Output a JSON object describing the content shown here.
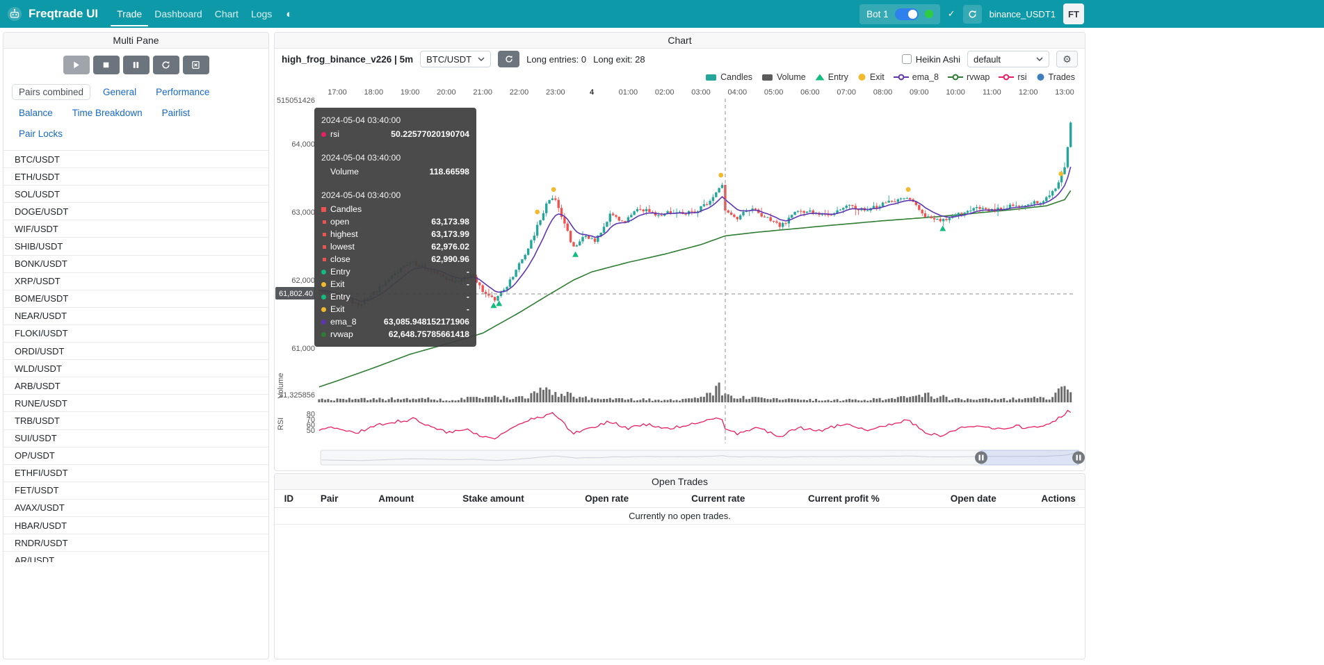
{
  "navbar": {
    "brand": "Freqtrade UI",
    "links": [
      {
        "label": "Trade",
        "active": true
      },
      {
        "label": "Dashboard",
        "active": false
      },
      {
        "label": "Chart",
        "active": false
      },
      {
        "label": "Logs",
        "active": false
      }
    ],
    "icons": {
      "theme": "◐",
      "check": "✓",
      "gear": "⚙"
    },
    "bot_name": "Bot 1",
    "exchange_label": "binance_USDT1",
    "avatar": "FT"
  },
  "multi_pane": {
    "title": "Multi Pane",
    "controls": [
      {
        "name": "start-bot-button",
        "icon": "play",
        "disabled": true
      },
      {
        "name": "stop-bot-button",
        "icon": "stop",
        "disabled": false
      },
      {
        "name": "pause-bot-button",
        "icon": "pause",
        "disabled": false
      },
      {
        "name": "reload-config-button",
        "icon": "reload",
        "disabled": false
      },
      {
        "name": "cancel-open-orders-button",
        "icon": "filex",
        "disabled": false
      }
    ],
    "tabs": [
      {
        "label": "Pairs combined",
        "active": true
      },
      {
        "label": "General",
        "active": false
      },
      {
        "label": "Performance",
        "active": false
      },
      {
        "label": "Balance",
        "active": false
      },
      {
        "label": "Time Breakdown",
        "active": false
      },
      {
        "label": "Pairlist",
        "active": false
      },
      {
        "label": "Pair Locks",
        "active": false
      }
    ],
    "pairs": [
      "BTC/USDT",
      "ETH/USDT",
      "SOL/USDT",
      "DOGE/USDT",
      "WIF/USDT",
      "SHIB/USDT",
      "BONK/USDT",
      "XRP/USDT",
      "BOME/USDT",
      "NEAR/USDT",
      "FLOKI/USDT",
      "ORDI/USDT",
      "WLD/USDT",
      "ARB/USDT",
      "RUNE/USDT",
      "TRB/USDT",
      "SUI/USDT",
      "OP/USDT",
      "ETHFI/USDT",
      "FET/USDT",
      "AVAX/USDT",
      "HBAR/USDT",
      "RNDR/USDT",
      "AR/USDT"
    ]
  },
  "chart": {
    "panel_title": "Chart",
    "strategy_label": "high_frog_binance_v226 | 5m",
    "pair_selected": "BTC/USDT",
    "long_entries_label": "Long entries: 0",
    "long_exit_label": "Long exit: 28",
    "heikin_ashi_label": "Heikin Ashi",
    "plot_config_selected": "default",
    "legend": [
      {
        "label": "Candles",
        "marker": "rect",
        "color": "#26a69a"
      },
      {
        "label": "Volume",
        "marker": "rect",
        "color": "#5c5c5c"
      },
      {
        "label": "Entry",
        "marker": "triangle-up",
        "color": "#12bb7e"
      },
      {
        "label": "Exit",
        "marker": "circle",
        "color": "#f3ba2f"
      },
      {
        "label": "ema_8",
        "marker": "line-circle",
        "color": "#5e35b1"
      },
      {
        "label": "rvwap",
        "marker": "line-circle",
        "color": "#2e7d32"
      },
      {
        "label": "rsi",
        "marker": "line-circle",
        "color": "#e91e63"
      },
      {
        "label": "Trades",
        "marker": "circle",
        "color": "#3d7ebb"
      }
    ],
    "x_ticks": [
      "17:00",
      "18:00",
      "19:00",
      "20:00",
      "21:00",
      "22:00",
      "23:00",
      "4",
      "01:00",
      "02:00",
      "03:00",
      "04:00",
      "05:00",
      "06:00",
      "07:00",
      "08:00",
      "09:00",
      "10:00",
      "11:00",
      "12:00",
      "13:00"
    ],
    "price_ticks": [
      {
        "label": "64,000",
        "value": 64000
      },
      {
        "label": "63,000",
        "value": 63000
      },
      {
        "label": "62,000",
        "value": 62000
      },
      {
        "label": "61,000",
        "value": 61000
      }
    ],
    "volume_axis_top_label": "515051426",
    "volume_tick_label": "21,325856",
    "volume_axis_title": "Volume",
    "rsi_axis_title": "RSI",
    "rsi_ticks": [
      {
        "label": "80",
        "value": 80
      },
      {
        "label": "70",
        "value": 70
      },
      {
        "label": "60",
        "value": 60
      },
      {
        "label": "50",
        "value": 50
      }
    ],
    "crosshair_price_label": "61,802.40",
    "tooltip": {
      "sections": [
        {
          "time": "2024-05-04 03:40:00",
          "rows": [
            {
              "label": "rsi",
              "value": "50.22577020190704",
              "marker": "circle",
              "color": "#e91e63"
            }
          ]
        },
        {
          "time": "2024-05-04 03:40:00",
          "rows": [
            {
              "label": "Volume",
              "value": "118.66598",
              "marker": "none",
              "color": ""
            }
          ]
        },
        {
          "time": "2024-05-04 03:40:00",
          "rows": [
            {
              "label": "Candles",
              "value": "",
              "marker": "square",
              "color": "#ef5350"
            },
            {
              "label": "open",
              "value": "63,173.98",
              "marker": "square-sm",
              "color": "#ef5350"
            },
            {
              "label": "highest",
              "value": "63,173.99",
              "marker": "square-sm",
              "color": "#ef5350"
            },
            {
              "label": "lowest",
              "value": "62,976.02",
              "marker": "square-sm",
              "color": "#ef5350"
            },
            {
              "label": "close",
              "value": "62,990.96",
              "marker": "square-sm",
              "color": "#ef5350"
            },
            {
              "label": "Entry",
              "value": "-",
              "marker": "circle",
              "color": "#12bb7e"
            },
            {
              "label": "Exit",
              "value": "-",
              "marker": "circle",
              "color": "#f3ba2f"
            },
            {
              "label": "Entry",
              "value": "-",
              "marker": "circle",
              "color": "#12bb7e"
            },
            {
              "label": "Exit",
              "value": "-",
              "marker": "circle",
              "color": "#f3ba2f"
            },
            {
              "label": "ema_8",
              "value": "63,085.948152171906",
              "marker": "circle",
              "color": "#5e35b1"
            },
            {
              "label": "rvwap",
              "value": "62,648.75785661418",
              "marker": "circle",
              "color": "#2e7d32"
            }
          ]
        }
      ]
    },
    "chart_data": {
      "type": "candlestick",
      "pair": "BTC/USDT",
      "timeframe": "5m",
      "x_start_hour_offset": -0.5,
      "candles": 249,
      "price_anchors": [
        [
          -0.5,
          61850
        ],
        [
          0,
          61760
        ],
        [
          0.6,
          61640
        ],
        [
          1.2,
          61900
        ],
        [
          2,
          62280
        ],
        [
          2.5,
          62150
        ],
        [
          3.2,
          61960
        ],
        [
          3.7,
          62080
        ],
        [
          4.05,
          61800
        ],
        [
          4.35,
          61700
        ],
        [
          4.8,
          62020
        ],
        [
          5.3,
          62520
        ],
        [
          5.75,
          63120
        ],
        [
          5.95,
          63230
        ],
        [
          6.2,
          62880
        ],
        [
          6.5,
          62470
        ],
        [
          6.8,
          62640
        ],
        [
          7.1,
          62560
        ],
        [
          7.5,
          62950
        ],
        [
          7.9,
          62860
        ],
        [
          8.3,
          63060
        ],
        [
          8.8,
          62950
        ],
        [
          9.3,
          63010
        ],
        [
          9.8,
          62980
        ],
        [
          10.2,
          63140
        ],
        [
          10.45,
          63300
        ],
        [
          10.58,
          63440
        ],
        [
          10.67,
          62990
        ],
        [
          11,
          62900
        ],
        [
          11.35,
          63060
        ],
        [
          11.7,
          62950
        ],
        [
          12.2,
          62790
        ],
        [
          12.6,
          62990
        ],
        [
          13,
          63010
        ],
        [
          13.5,
          62930
        ],
        [
          14,
          63090
        ],
        [
          14.5,
          63020
        ],
        [
          15.2,
          63150
        ],
        [
          15.7,
          63230
        ],
        [
          16.1,
          62950
        ],
        [
          16.6,
          62860
        ],
        [
          17,
          62960
        ],
        [
          17.5,
          63060
        ],
        [
          18,
          63020
        ],
        [
          18.5,
          63090
        ],
        [
          19,
          63110
        ],
        [
          19.4,
          63160
        ],
        [
          19.8,
          63360
        ],
        [
          20,
          63680
        ],
        [
          20.1,
          64000
        ],
        [
          20.17,
          64300
        ],
        [
          20.25,
          64100
        ]
      ],
      "rvwap_anchors": [
        [
          -0.5,
          60430
        ],
        [
          0,
          60520
        ],
        [
          1,
          60710
        ],
        [
          2,
          60910
        ],
        [
          3,
          61060
        ],
        [
          4,
          61220
        ],
        [
          5,
          61520
        ],
        [
          5.8,
          61780
        ],
        [
          6.5,
          62000
        ],
        [
          7,
          62120
        ],
        [
          8,
          62260
        ],
        [
          9,
          62380
        ],
        [
          10,
          62520
        ],
        [
          10.67,
          62649
        ],
        [
          11.5,
          62700
        ],
        [
          12.5,
          62750
        ],
        [
          13.5,
          62800
        ],
        [
          15,
          62870
        ],
        [
          16.5,
          62930
        ],
        [
          17.5,
          62980
        ],
        [
          18.5,
          63030
        ],
        [
          19.5,
          63090
        ],
        [
          20,
          63180
        ],
        [
          20.25,
          63380
        ]
      ],
      "rsi_anchors": [
        [
          -0.5,
          52
        ],
        [
          0,
          55
        ],
        [
          0.5,
          44
        ],
        [
          1,
          58
        ],
        [
          1.6,
          66
        ],
        [
          2.1,
          71
        ],
        [
          2.6,
          54
        ],
        [
          3.1,
          46
        ],
        [
          3.5,
          52
        ],
        [
          4,
          40
        ],
        [
          4.35,
          35
        ],
        [
          4.8,
          56
        ],
        [
          5.3,
          70
        ],
        [
          5.9,
          81
        ],
        [
          6.15,
          68
        ],
        [
          6.5,
          44
        ],
        [
          7,
          56
        ],
        [
          7.5,
          66
        ],
        [
          8,
          54
        ],
        [
          8.5,
          61
        ],
        [
          9,
          54
        ],
        [
          9.6,
          58
        ],
        [
          10.2,
          68
        ],
        [
          10.55,
          74
        ],
        [
          10.67,
          50
        ],
        [
          11,
          44
        ],
        [
          11.5,
          56
        ],
        [
          12.2,
          39
        ],
        [
          12.7,
          55
        ],
        [
          13.2,
          49
        ],
        [
          14,
          62
        ],
        [
          14.6,
          51
        ],
        [
          15.2,
          62
        ],
        [
          15.7,
          68
        ],
        [
          16.2,
          45
        ],
        [
          16.6,
          39
        ],
        [
          17,
          52
        ],
        [
          17.6,
          61
        ],
        [
          18.1,
          52
        ],
        [
          18.6,
          58
        ],
        [
          19.1,
          54
        ],
        [
          19.5,
          60
        ],
        [
          19.9,
          76
        ],
        [
          20.1,
          85
        ],
        [
          20.25,
          78
        ]
      ],
      "volume_anchors": [
        [
          -0.5,
          0.18
        ],
        [
          1,
          0.2
        ],
        [
          2,
          0.24
        ],
        [
          3,
          0.18
        ],
        [
          4.3,
          0.3
        ],
        [
          5,
          0.3
        ],
        [
          5.5,
          0.55
        ],
        [
          5.8,
          0.95
        ],
        [
          6.1,
          0.55
        ],
        [
          6.6,
          0.35
        ],
        [
          7,
          0.22
        ],
        [
          8,
          0.18
        ],
        [
          9,
          0.16
        ],
        [
          10,
          0.25
        ],
        [
          10.5,
          1.0
        ],
        [
          10.7,
          0.45
        ],
        [
          11,
          0.3
        ],
        [
          12,
          0.2
        ],
        [
          13,
          0.15
        ],
        [
          14,
          0.15
        ],
        [
          15,
          0.2
        ],
        [
          15.8,
          0.3
        ],
        [
          16.3,
          0.45
        ],
        [
          17,
          0.2
        ],
        [
          18,
          0.18
        ],
        [
          19,
          0.22
        ],
        [
          19.6,
          0.3
        ],
        [
          19.95,
          0.8
        ],
        [
          20.15,
          1.0
        ],
        [
          20.25,
          0.85
        ]
      ],
      "trade_markers": [
        {
          "t": 4.3,
          "price": 61630,
          "type": "entry"
        },
        {
          "t": 4.45,
          "price": 61660,
          "type": "entry"
        },
        {
          "t": 5.5,
          "price": 63000,
          "type": "exit"
        },
        {
          "t": 5.95,
          "price": 63330,
          "type": "exit"
        },
        {
          "t": 6.55,
          "price": 62380,
          "type": "entry"
        },
        {
          "t": 10.55,
          "price": 63540,
          "type": "exit"
        },
        {
          "t": 15.7,
          "price": 63330,
          "type": "exit"
        },
        {
          "t": 16.65,
          "price": 62760,
          "type": "entry"
        },
        {
          "t": 19.9,
          "price": 63560,
          "type": "exit"
        }
      ],
      "colors": {
        "up": "#26a69a",
        "down": "#ef5350",
        "ema_8": "#5e35b1",
        "rvwap": "#2e7d32",
        "rsi": "#e91e63",
        "volume": "#6b6b6b",
        "entry": "#12bb7e",
        "exit": "#f3ba2f",
        "crosshair": "#8f8f8f"
      }
    }
  },
  "open_trades": {
    "title": "Open Trades",
    "columns": [
      "ID",
      "Pair",
      "Amount",
      "Stake amount",
      "Open rate",
      "Current rate",
      "Current profit %",
      "Open date",
      "Actions"
    ],
    "empty_message": "Currently no open trades."
  }
}
